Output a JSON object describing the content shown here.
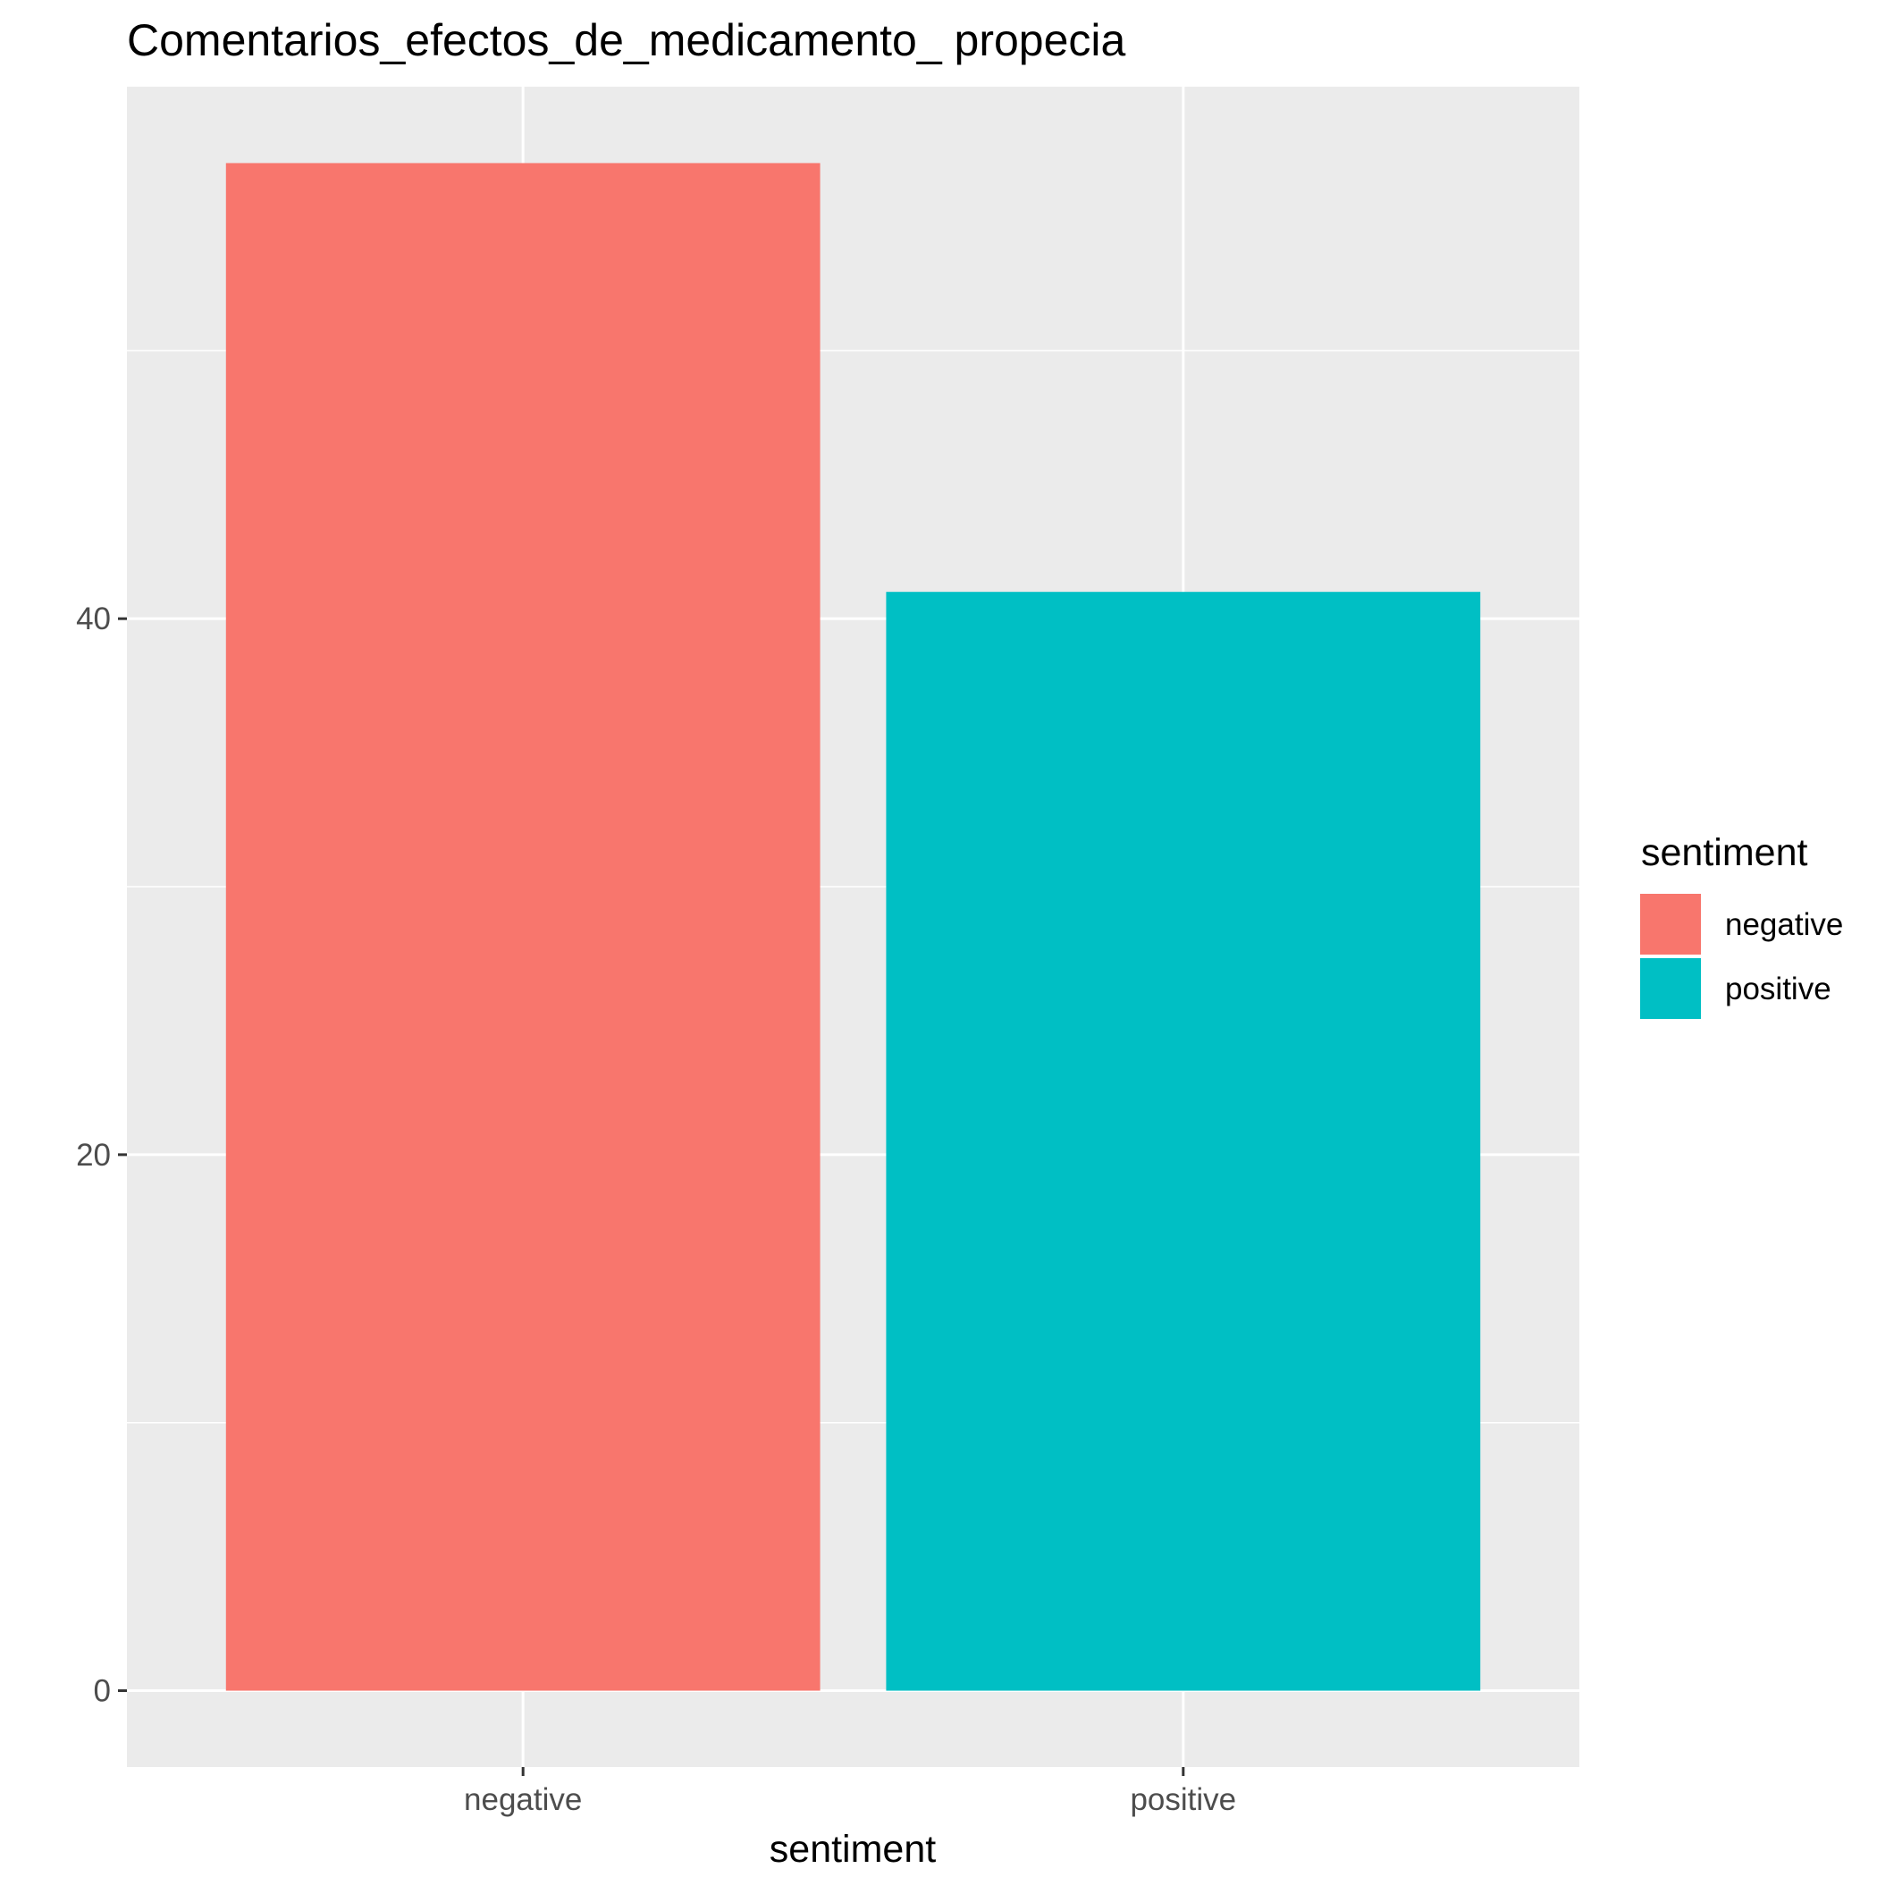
{
  "chart_data": {
    "type": "bar",
    "title": "Comentarios_efectos_de_medicamento_ propecia",
    "xlabel": "sentiment",
    "ylabel": "",
    "categories": [
      "negative",
      "positive"
    ],
    "values": [
      57,
      41
    ],
    "colors": [
      "#F8766D",
      "#00BFC4"
    ],
    "ylim": [
      -2.85,
      59.85
    ],
    "yticks": [
      0,
      20,
      40
    ],
    "grid": true,
    "panel_background": "#EBEBEB",
    "gridline_color": "#FFFFFF",
    "legend": {
      "title": "sentiment",
      "position": "right",
      "entries": [
        "negative",
        "positive"
      ]
    }
  }
}
